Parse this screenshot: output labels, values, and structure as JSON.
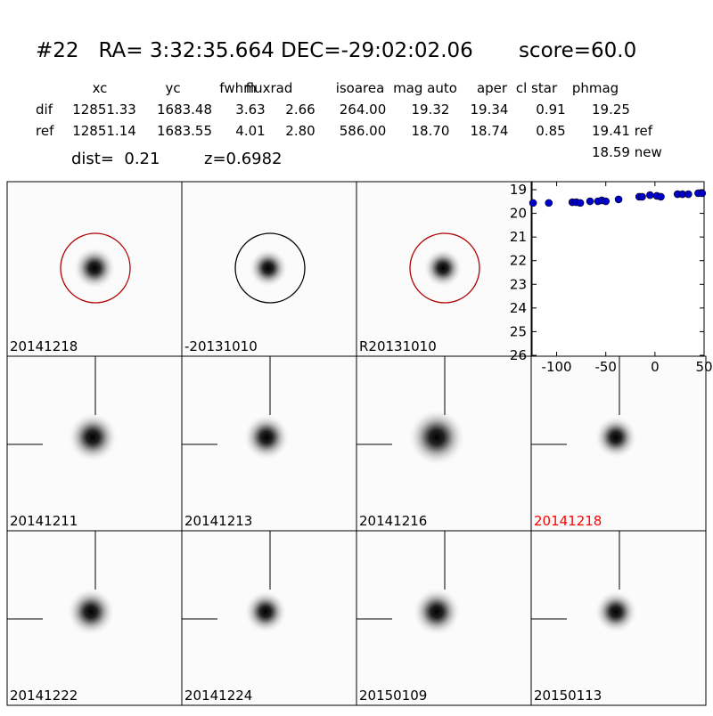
{
  "header": {
    "title": "#22   RA= 3:32:35.664 DEC=-29:02:02.06       score=60.0",
    "dist": "dist=  0.21",
    "z": "z=0.6982"
  },
  "table": {
    "columns": [
      "xc",
      "yc",
      "fwhm",
      "fluxrad",
      "isoarea",
      "mag auto",
      "aper",
      "cl star",
      "phmag"
    ],
    "rows": [
      [
        "dif",
        "12851.33",
        "1683.48",
        "3.63",
        "2.66",
        "264.00",
        "19.32",
        "19.34",
        "0.91",
        "19.25"
      ],
      [
        "ref",
        "12851.14",
        "1683.55",
        "4.01",
        "2.80",
        "586.00",
        "18.70",
        "18.74",
        "0.85",
        "19.41 ref"
      ]
    ],
    "extra": "18.59 new"
  },
  "panels": [
    {
      "label": "20141218",
      "circle": "#b00000"
    },
    {
      "label": "-20131010",
      "circle": "#000000"
    },
    {
      "label": "R20131010",
      "circle": "#b00000"
    },
    {
      "label": "20141211"
    },
    {
      "label": "20141213"
    },
    {
      "label": "20141216"
    },
    {
      "label": "20141218",
      "label_color": "#ff0000"
    },
    {
      "label": "20141222"
    },
    {
      "label": "20141224"
    },
    {
      "label": "20150109"
    },
    {
      "label": "20150113"
    }
  ],
  "chart_data": {
    "type": "scatter",
    "color": "#0000cc",
    "x": [
      -124,
      -108,
      -84,
      -80,
      -76,
      -66,
      -58,
      -54,
      -50,
      -37,
      -16,
      -13,
      -5,
      2,
      6,
      23,
      28,
      34,
      44,
      48
    ],
    "values": [
      19.56,
      19.56,
      19.53,
      19.53,
      19.56,
      19.49,
      19.49,
      19.45,
      19.49,
      19.41,
      19.3,
      19.3,
      19.23,
      19.26,
      19.3,
      19.19,
      19.19,
      19.19,
      19.15,
      19.15
    ],
    "xlim": [
      -125,
      50
    ],
    "ylim": [
      26,
      19
    ],
    "xticks": [
      -100,
      -50,
      0,
      50
    ],
    "yticks": [
      19,
      20,
      21,
      22,
      23,
      24,
      25,
      26
    ]
  }
}
